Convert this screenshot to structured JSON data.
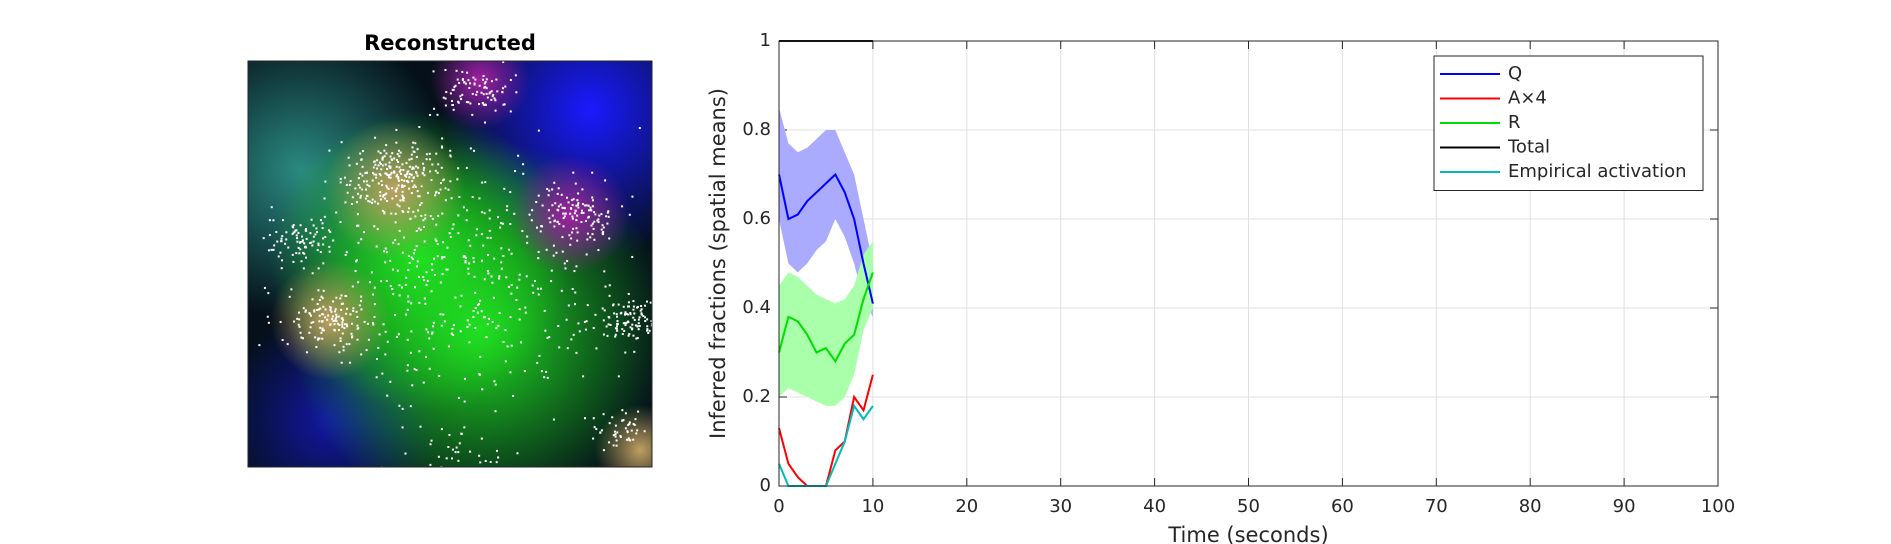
{
  "image_panel": {
    "title": "Reconstructed"
  },
  "chart_data": {
    "type": "line",
    "xlabel": "Time (seconds)",
    "ylabel": "Inferred fractions (spatial means)",
    "x": [
      0,
      1,
      2,
      3,
      4,
      5,
      6,
      7,
      8,
      9,
      10
    ],
    "series": [
      {
        "name": "Q",
        "color": "#0000ff",
        "band_color": "#aaaaff",
        "values": [
          0.7,
          0.6,
          0.61,
          0.64,
          0.66,
          0.68,
          0.7,
          0.66,
          0.6,
          0.5,
          0.41
        ],
        "upper": [
          0.85,
          0.77,
          0.75,
          0.76,
          0.78,
          0.8,
          0.8,
          0.75,
          0.7,
          0.6,
          0.5
        ],
        "lower": [
          0.6,
          0.5,
          0.48,
          0.5,
          0.53,
          0.55,
          0.6,
          0.56,
          0.5,
          0.42,
          0.38
        ]
      },
      {
        "name": "A×4",
        "color": "#ff0000",
        "values": [
          0.13,
          0.05,
          0.02,
          0.0,
          0.0,
          0.0,
          0.08,
          0.1,
          0.2,
          0.17,
          0.25
        ]
      },
      {
        "name": "R",
        "color": "#00dd00",
        "band_color": "#aaffaa",
        "values": [
          0.3,
          0.38,
          0.37,
          0.34,
          0.3,
          0.31,
          0.28,
          0.32,
          0.34,
          0.42,
          0.48
        ],
        "upper": [
          0.45,
          0.48,
          0.47,
          0.45,
          0.43,
          0.42,
          0.41,
          0.42,
          0.45,
          0.52,
          0.55
        ],
        "lower": [
          0.2,
          0.22,
          0.21,
          0.2,
          0.19,
          0.18,
          0.18,
          0.2,
          0.25,
          0.35,
          0.4
        ]
      },
      {
        "name": "Total",
        "color": "#000000",
        "values": [
          1,
          1,
          1,
          1,
          1,
          1,
          1,
          1,
          1,
          1,
          1
        ]
      },
      {
        "name": "Empirical activation",
        "color": "#00bbbb",
        "values": [
          0.05,
          0.0,
          0.0,
          0.0,
          0.0,
          0.0,
          0.05,
          0.1,
          0.18,
          0.15,
          0.18
        ]
      }
    ],
    "xlim": [
      0,
      100
    ],
    "xticks": [
      0,
      10,
      20,
      30,
      40,
      50,
      60,
      70,
      80,
      90,
      100
    ],
    "ylim": [
      0,
      1
    ],
    "yticks": [
      0,
      0.2,
      0.4,
      0.6,
      0.8,
      1
    ],
    "grid": true,
    "legend": "upper right"
  }
}
